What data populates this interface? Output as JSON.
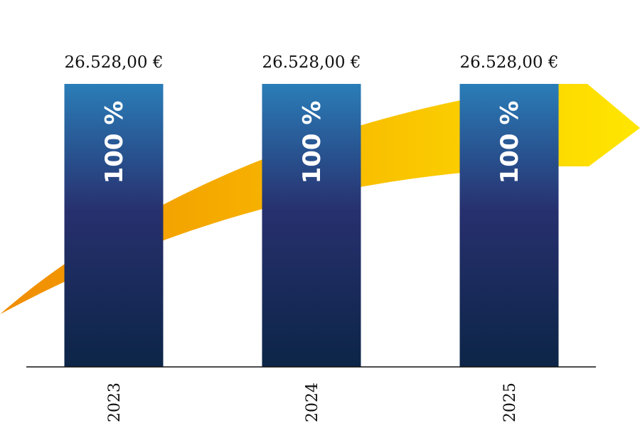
{
  "chart_data": {
    "type": "bar",
    "categories": [
      "2023",
      "2024",
      "2025"
    ],
    "values": [
      26528.0,
      26528.0,
      26528.0
    ],
    "value_labels": [
      "26.528,00 €",
      "26.528,00 €",
      "26.528,00 €"
    ],
    "percent_labels": [
      "100 %",
      "100 %",
      "100 %"
    ],
    "title": "",
    "xlabel": "",
    "ylabel": "",
    "ylim": [
      0,
      26528
    ],
    "grid": false,
    "colors": {
      "bar_top": "#2a7db8",
      "bar_mid": "#27306e",
      "bar_bottom": "#0c2547",
      "arrow_start": "#f08c00",
      "arrow_end": "#ffe600",
      "axis": "#111111"
    }
  }
}
